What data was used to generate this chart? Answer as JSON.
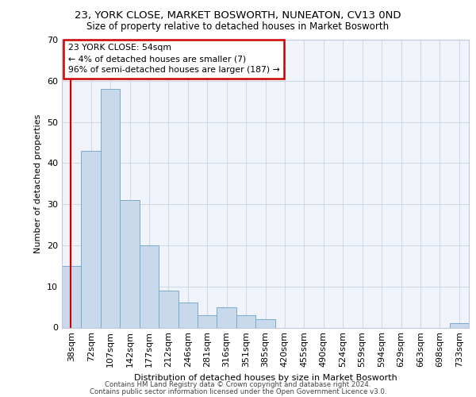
{
  "title1": "23, YORK CLOSE, MARKET BOSWORTH, NUNEATON, CV13 0ND",
  "title2": "Size of property relative to detached houses in Market Bosworth",
  "xlabel": "Distribution of detached houses by size in Market Bosworth",
  "ylabel": "Number of detached properties",
  "bins": [
    "38sqm",
    "72sqm",
    "107sqm",
    "142sqm",
    "177sqm",
    "212sqm",
    "246sqm",
    "281sqm",
    "316sqm",
    "351sqm",
    "385sqm",
    "420sqm",
    "455sqm",
    "490sqm",
    "524sqm",
    "559sqm",
    "594sqm",
    "629sqm",
    "663sqm",
    "698sqm",
    "733sqm"
  ],
  "values": [
    15,
    43,
    58,
    31,
    20,
    9,
    6,
    3,
    5,
    3,
    2,
    0,
    0,
    0,
    0,
    0,
    0,
    0,
    0,
    0,
    1
  ],
  "bar_color": "#c9d9ec",
  "bar_edge_color": "#7aaaca",
  "subject_line_color": "#cc0000",
  "annotation_text1": "23 YORK CLOSE: 54sqm",
  "annotation_text2": "← 4% of detached houses are smaller (7)",
  "annotation_text3": "96% of semi-detached houses are larger (187) →",
  "annotation_box_color": "#ffffff",
  "annotation_box_edge": "#cc0000",
  "grid_color": "#d0d8e8",
  "ylim": [
    0,
    70
  ],
  "footer1": "Contains HM Land Registry data © Crown copyright and database right 2024.",
  "footer2": "Contains public sector information licensed under the Open Government Licence v3.0."
}
